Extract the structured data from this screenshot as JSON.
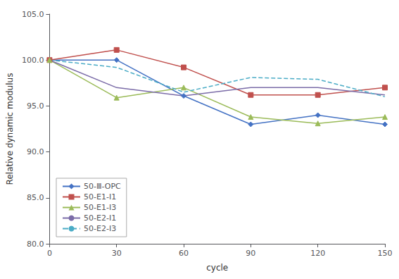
{
  "chart_data": {
    "type": "line",
    "x": [
      0,
      30,
      60,
      90,
      120,
      150
    ],
    "series": [
      {
        "name": "50-Ⅲ-OPC",
        "color": "#4472C4",
        "marker": "diamond",
        "line_style": "solid",
        "values": [
          100.0,
          100.0,
          96.1,
          93.0,
          94.0,
          93.0
        ]
      },
      {
        "name": "50-E1-I1",
        "color": "#C0504D",
        "marker": "square",
        "line_style": "solid",
        "values": [
          100.0,
          101.1,
          99.2,
          96.2,
          96.2,
          97.0
        ]
      },
      {
        "name": "50-E1-I3",
        "color": "#9BBB59",
        "marker": "triangle",
        "line_style": "solid",
        "values": [
          100.0,
          95.9,
          97.0,
          93.8,
          93.1,
          93.8
        ]
      },
      {
        "name": "50-E2-I1",
        "color": "#7B6CA8",
        "marker": "none",
        "line_style": "solid",
        "values": [
          100.0,
          97.0,
          96.1,
          97.0,
          97.0,
          96.2
        ]
      },
      {
        "name": "50-E2-I3",
        "color": "#4BACC6",
        "marker": "none",
        "line_style": "dashed",
        "values": [
          100.0,
          99.2,
          96.5,
          98.1,
          97.9,
          96.0
        ]
      }
    ],
    "xlabel": "cycle",
    "ylabel": "Relative dynamic modulus",
    "xlim": [
      0,
      150
    ],
    "ylim": [
      80.0,
      105.0
    ],
    "xticks": [
      0,
      30,
      60,
      90,
      120,
      150
    ],
    "yticks": [
      {
        "value": 80,
        "label": "80.0"
      },
      {
        "value": 85,
        "label": "85.0"
      },
      {
        "value": 90,
        "label": "90.0"
      },
      {
        "value": 95,
        "label": "95.0"
      },
      {
        "value": 100,
        "label": "100.0"
      },
      {
        "value": 105,
        "label": "105.0"
      }
    ],
    "legend": "lower left",
    "grid": false
  }
}
